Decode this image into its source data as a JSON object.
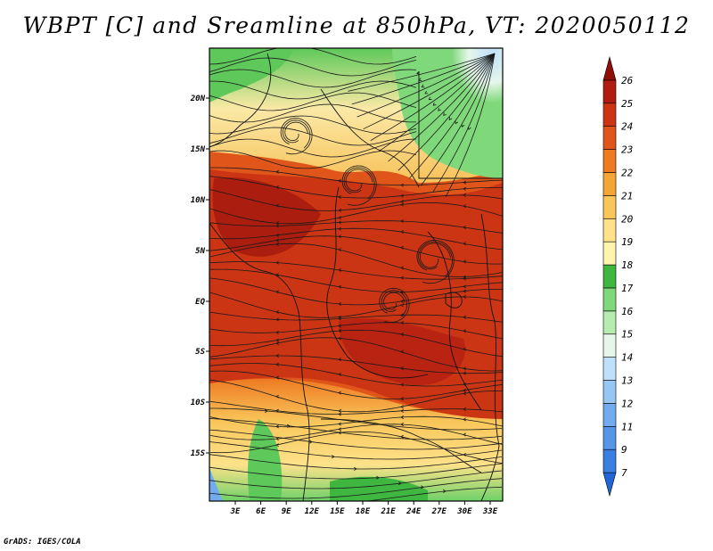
{
  "title": "WBPT [C] and Sreamline at 850hPa, VT: 2020050112",
  "credit": "GrADS: IGES/COLA",
  "lat_labels": [
    "20N",
    "15N",
    "10N",
    "5N",
    "EQ",
    "5S",
    "10S",
    "15S"
  ],
  "lon_labels": [
    "3E",
    "6E",
    "9E",
    "12E",
    "15E",
    "18E",
    "21E",
    "24E",
    "27E",
    "30E",
    "33E"
  ],
  "colorbar": {
    "labels": [
      "7",
      "9",
      "11",
      "12",
      "13",
      "14",
      "15",
      "16",
      "17",
      "18",
      "19",
      "20",
      "21",
      "22",
      "23",
      "24",
      "25",
      "26"
    ],
    "colors": [
      "#2166d8",
      "#3b7fe0",
      "#5596e6",
      "#73acee",
      "#96c6f4",
      "#bfe0fa",
      "#e6f6ea",
      "#b7ecb0",
      "#7fd87a",
      "#3fb63f",
      "#fff3b0",
      "#fde28a",
      "#f9c65a",
      "#f5a436",
      "#ee7a22",
      "#e0561a",
      "#cc3514",
      "#b01c10",
      "#8e0e08"
    ]
  }
}
